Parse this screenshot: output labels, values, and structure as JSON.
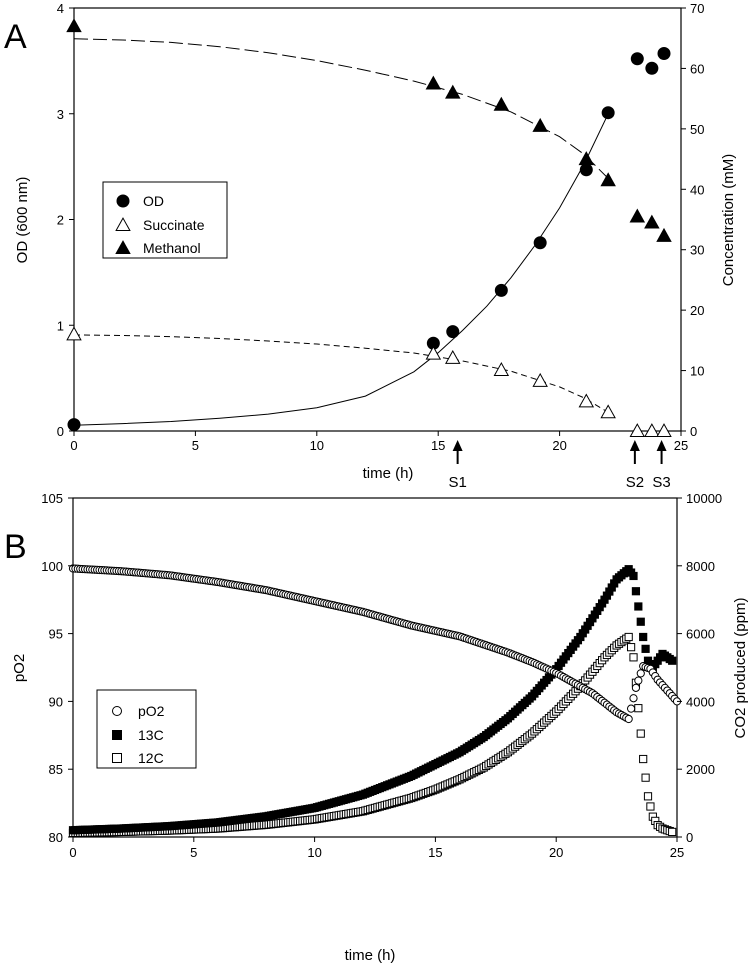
{
  "chart_data": [
    {
      "panel": "A",
      "type": "scatter",
      "xlabel": "time (h)",
      "ylabel_left": "OD (600 nm)",
      "ylabel_right": "Concentration (mM)",
      "xlim": [
        0,
        25
      ],
      "ylim_left": [
        0,
        4
      ],
      "ylim_right": [
        0,
        70
      ],
      "xticks": [
        0,
        5,
        10,
        15,
        20,
        25
      ],
      "yticks_left": [
        0,
        1,
        2,
        3,
        4
      ],
      "yticks_right": [
        0,
        10,
        20,
        30,
        40,
        50,
        60,
        70
      ],
      "legend_position": "middle-left",
      "series": [
        {
          "name": "OD",
          "axis": "left",
          "marker": "filled-circle",
          "x": [
            0,
            14.8,
            15.6,
            17.6,
            19.2,
            21.1,
            22.0,
            23.2,
            23.8,
            24.3
          ],
          "y": [
            0.06,
            0.83,
            0.94,
            1.33,
            1.78,
            2.47,
            3.01,
            3.52,
            3.43,
            3.57
          ]
        },
        {
          "name": "Succinate",
          "axis": "right",
          "marker": "open-triangle",
          "x": [
            0,
            14.8,
            15.6,
            17.6,
            19.2,
            21.1,
            22.0,
            23.2,
            23.8,
            24.3
          ],
          "y": [
            16.0,
            12.8,
            12.1,
            10.1,
            8.3,
            4.9,
            3.1,
            0,
            0,
            0
          ]
        },
        {
          "name": "Methanol",
          "axis": "right",
          "marker": "filled-triangle",
          "x": [
            0,
            14.8,
            15.6,
            17.6,
            19.2,
            21.1,
            22.0,
            23.2,
            23.8,
            24.3
          ],
          "y": [
            67.0,
            57.5,
            56.0,
            54.0,
            50.5,
            45.0,
            41.5,
            35.5,
            34.5,
            32.3
          ]
        }
      ],
      "fit_lines": [
        {
          "for": "OD",
          "style": "solid",
          "axis": "left",
          "x": [
            0,
            2,
            4,
            6,
            8,
            10,
            12,
            14,
            15,
            16,
            17,
            18,
            19,
            20,
            21,
            22
          ],
          "y": [
            0.055,
            0.07,
            0.09,
            0.12,
            0.16,
            0.22,
            0.33,
            0.56,
            0.74,
            0.95,
            1.18,
            1.45,
            1.76,
            2.11,
            2.52,
            3.0
          ]
        },
        {
          "for": "Succinate",
          "style": "dashed",
          "axis": "right",
          "x": [
            0,
            2,
            4,
            6,
            8,
            10,
            12,
            14,
            16,
            18,
            20,
            21,
            22
          ],
          "y": [
            15.9,
            15.8,
            15.6,
            15.3,
            14.9,
            14.4,
            13.7,
            12.9,
            11.6,
            9.9,
            7.3,
            5.5,
            3.1
          ]
        },
        {
          "for": "Methanol",
          "style": "long-dashed",
          "axis": "right",
          "x": [
            0,
            2,
            4,
            6,
            8,
            10,
            12,
            14,
            16,
            18,
            20,
            21,
            22
          ],
          "y": [
            64.9,
            64.7,
            64.3,
            63.6,
            62.6,
            61.3,
            59.7,
            57.9,
            55.7,
            52.8,
            48.7,
            45.8,
            41.8
          ]
        }
      ],
      "annotations": [
        {
          "label": "S1",
          "x": 15.8
        },
        {
          "label": "S2",
          "x": 23.1
        },
        {
          "label": "S3",
          "x": 24.2
        }
      ]
    },
    {
      "panel": "B",
      "type": "scatter",
      "xlabel": "time (h)",
      "ylabel_left": "pO2",
      "ylabel_right": "CO2 produced (ppm)",
      "xlim": [
        0,
        25
      ],
      "ylim_left": [
        80,
        105
      ],
      "ylim_right": [
        0,
        10000
      ],
      "xticks": [
        0,
        5,
        10,
        15,
        20,
        25
      ],
      "yticks_left": [
        80,
        85,
        90,
        95,
        100,
        105
      ],
      "yticks_right": [
        0,
        2000,
        4000,
        6000,
        8000,
        10000
      ],
      "legend_position": "middle-left",
      "series": [
        {
          "name": "pO2",
          "axis": "left",
          "marker": "open-circle",
          "x": [
            0,
            2,
            4,
            6,
            8,
            10,
            12,
            14,
            16,
            18,
            19,
            20,
            21,
            21.5,
            22,
            22.5,
            23.0,
            23.3,
            23.6,
            23.9,
            24.2,
            24.5,
            24.8,
            25.0
          ],
          "y": [
            99.8,
            99.6,
            99.3,
            98.8,
            98.2,
            97.4,
            96.6,
            95.6,
            94.8,
            93.6,
            92.9,
            92.1,
            91.1,
            90.6,
            89.9,
            89.2,
            88.7,
            91.0,
            92.6,
            92.4,
            91.6,
            91.0,
            90.4,
            90.0
          ]
        },
        {
          "name": "13C",
          "axis": "right",
          "marker": "filled-square",
          "x": [
            0,
            2,
            4,
            6,
            8,
            10,
            12,
            14,
            15,
            16,
            17,
            18,
            19,
            20,
            21,
            22,
            22.5,
            23.0,
            23.2,
            23.4,
            23.6,
            23.8,
            24.0,
            24.2,
            24.4,
            24.6,
            24.8
          ],
          "y": [
            200,
            250,
            320,
            430,
            610,
            860,
            1250,
            1800,
            2150,
            2500,
            2950,
            3500,
            4150,
            4950,
            5900,
            7000,
            7600,
            7900,
            7700,
            6800,
            5900,
            5200,
            5000,
            5200,
            5400,
            5300,
            5200
          ]
        },
        {
          "name": "12C",
          "axis": "right",
          "marker": "open-square",
          "x": [
            0,
            2,
            4,
            6,
            8,
            10,
            12,
            14,
            15,
            16,
            17,
            18,
            19,
            20,
            21,
            22,
            22.5,
            23.0,
            23.2,
            23.4,
            23.6,
            23.8,
            24.0,
            24.2,
            24.4,
            24.6,
            24.8
          ],
          "y": [
            120,
            150,
            190,
            250,
            360,
            520,
            760,
            1150,
            1400,
            1700,
            2050,
            2500,
            3050,
            3700,
            4450,
            5300,
            5650,
            5900,
            5300,
            3800,
            2300,
            1200,
            600,
            350,
            250,
            200,
            150
          ]
        }
      ]
    }
  ]
}
